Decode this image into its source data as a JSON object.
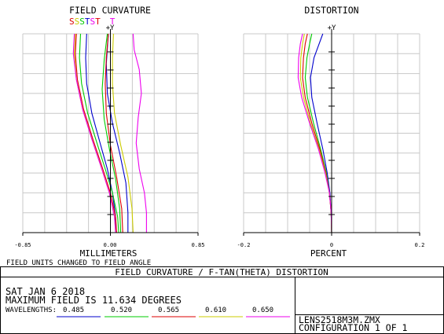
{
  "title_bar": "FIELD CURVATURE / F-TAN(THETA) DISTORTION",
  "info": {
    "date": "SAT JAN 6 2018",
    "max_field": "MAXIMUM FIELD IS 11.634 DEGREES",
    "wavelengths_label": "WAVELENGTHS:",
    "file": "LENS2518M3M.ZMX",
    "configuration": "CONFIGURATION 1 OF 1"
  },
  "colors": {
    "w1": "#0000cc",
    "w2": "#00cc00",
    "w3": "#dd0000",
    "w4": "#cccc00",
    "w5": "#ee00ee"
  },
  "chart_data": [
    {
      "type": "line",
      "title": "FIELD CURVATURE",
      "xlabel": "MILLIMETERS",
      "ylabel": "+Y",
      "note": "FIELD UNITS CHANGED TO FIELD ANGLE",
      "xlim": [
        -0.85,
        0.85
      ],
      "ylim": [
        0,
        1
      ],
      "x_ticks": [
        "-0.85",
        "0.00",
        "0.85"
      ],
      "grid": true,
      "st_labels": [
        {
          "text": "S",
          "color": "#dd0000"
        },
        {
          "text": "S",
          "color": "#cccc00"
        },
        {
          "text": "S",
          "color": "#00cc00"
        },
        {
          "text": "T",
          "color": "#0000cc"
        },
        {
          "text": "S",
          "color": "#ee00ee"
        },
        {
          "text": "T",
          "color": "#dd0000"
        },
        {
          "text": "T",
          "color": "#ee00ee"
        }
      ],
      "series": [
        {
          "wavelength": "0.485",
          "curve": "S",
          "color": "#0000cc",
          "points": [
            [
              0.05,
              0
            ],
            [
              0.05,
              0.08
            ],
            [
              0.02,
              0.2
            ],
            [
              -0.03,
              0.32
            ],
            [
              -0.1,
              0.45
            ],
            [
              -0.18,
              0.6
            ],
            [
              -0.23,
              0.75
            ],
            [
              -0.24,
              0.88
            ],
            [
              -0.23,
              1
            ]
          ]
        },
        {
          "wavelength": "0.485",
          "curve": "T",
          "color": "#0000cc",
          "points": [
            [
              0.17,
              0
            ],
            [
              0.17,
              0.1
            ],
            [
              0.15,
              0.25
            ],
            [
              0.09,
              0.4
            ],
            [
              0.02,
              0.55
            ],
            [
              -0.03,
              0.7
            ],
            [
              -0.04,
              0.85
            ],
            [
              -0.02,
              1
            ]
          ]
        },
        {
          "wavelength": "0.520",
          "curve": "S",
          "color": "#00cc00",
          "points": [
            [
              0.08,
              0
            ],
            [
              0.07,
              0.08
            ],
            [
              0.02,
              0.2
            ],
            [
              -0.05,
              0.32
            ],
            [
              -0.13,
              0.45
            ],
            [
              -0.22,
              0.6
            ],
            [
              -0.28,
              0.75
            ],
            [
              -0.3,
              0.88
            ],
            [
              -0.29,
              1
            ]
          ]
        },
        {
          "wavelength": "0.520",
          "curve": "T",
          "color": "#00cc00",
          "points": [
            [
              0.1,
              0
            ],
            [
              0.09,
              0.12
            ],
            [
              0.05,
              0.27
            ],
            [
              -0.01,
              0.42
            ],
            [
              -0.06,
              0.57
            ],
            [
              -0.08,
              0.72
            ],
            [
              -0.06,
              0.87
            ],
            [
              -0.03,
              1
            ]
          ]
        },
        {
          "wavelength": "0.565",
          "curve": "S",
          "color": "#dd0000",
          "points": [
            [
              0.06,
              0
            ],
            [
              0.05,
              0.08
            ],
            [
              0.0,
              0.2
            ],
            [
              -0.08,
              0.33
            ],
            [
              -0.17,
              0.47
            ],
            [
              -0.26,
              0.62
            ],
            [
              -0.32,
              0.77
            ],
            [
              -0.34,
              0.9
            ],
            [
              -0.33,
              1
            ]
          ]
        },
        {
          "wavelength": "0.565",
          "curve": "T",
          "color": "#dd0000",
          "points": [
            [
              0.12,
              0
            ],
            [
              0.11,
              0.12
            ],
            [
              0.06,
              0.28
            ],
            [
              0.0,
              0.44
            ],
            [
              -0.04,
              0.6
            ],
            [
              -0.05,
              0.75
            ],
            [
              -0.04,
              0.88
            ],
            [
              -0.02,
              1
            ]
          ]
        },
        {
          "wavelength": "0.610",
          "curve": "S",
          "color": "#cccc00",
          "points": [
            [
              0.05,
              0
            ],
            [
              0.04,
              0.08
            ],
            [
              -0.01,
              0.2
            ],
            [
              -0.09,
              0.33
            ],
            [
              -0.18,
              0.47
            ],
            [
              -0.27,
              0.62
            ],
            [
              -0.33,
              0.77
            ],
            [
              -0.35,
              0.9
            ],
            [
              -0.34,
              1
            ]
          ]
        },
        {
          "wavelength": "0.610",
          "curve": "T",
          "color": "#cccc00",
          "points": [
            [
              0.22,
              0
            ],
            [
              0.21,
              0.12
            ],
            [
              0.17,
              0.28
            ],
            [
              0.1,
              0.44
            ],
            [
              0.04,
              0.6
            ],
            [
              0.02,
              0.75
            ],
            [
              0.02,
              0.88
            ],
            [
              0.03,
              1
            ]
          ]
        },
        {
          "wavelength": "0.650",
          "curve": "S",
          "color": "#ee00ee",
          "points": [
            [
              0.05,
              0
            ],
            [
              0.04,
              0.08
            ],
            [
              -0.01,
              0.2
            ],
            [
              -0.09,
              0.33
            ],
            [
              -0.18,
              0.47
            ],
            [
              -0.27,
              0.62
            ],
            [
              -0.33,
              0.77
            ],
            [
              -0.36,
              0.9
            ],
            [
              -0.35,
              1
            ]
          ]
        },
        {
          "wavelength": "0.650",
          "curve": "T",
          "color": "#ee00ee",
          "points": [
            [
              0.35,
              0
            ],
            [
              0.35,
              0.1
            ],
            [
              0.33,
              0.2
            ],
            [
              0.28,
              0.32
            ],
            [
              0.25,
              0.45
            ],
            [
              0.27,
              0.58
            ],
            [
              0.3,
              0.7
            ],
            [
              0.28,
              0.82
            ],
            [
              0.23,
              0.92
            ],
            [
              0.22,
              1
            ]
          ]
        }
      ]
    },
    {
      "type": "line",
      "title": "DISTORTION",
      "xlabel": "PERCENT",
      "ylabel": "+Y",
      "xlim": [
        -0.2,
        0.2
      ],
      "ylim": [
        0,
        1
      ],
      "x_ticks": [
        "-0.2",
        "0",
        "0.2"
      ],
      "grid": true,
      "series": [
        {
          "wavelength": "0.485",
          "color": "#0000cc",
          "points": [
            [
              0,
              0
            ],
            [
              -0.001,
              0.1
            ],
            [
              -0.004,
              0.2
            ],
            [
              -0.01,
              0.3
            ],
            [
              -0.02,
              0.42
            ],
            [
              -0.033,
              0.55
            ],
            [
              -0.045,
              0.68
            ],
            [
              -0.048,
              0.78
            ],
            [
              -0.04,
              0.88
            ],
            [
              -0.03,
              0.94
            ],
            [
              -0.02,
              1
            ]
          ]
        },
        {
          "wavelength": "0.520",
          "color": "#00cc00",
          "points": [
            [
              0,
              0
            ],
            [
              -0.001,
              0.1
            ],
            [
              -0.005,
              0.2
            ],
            [
              -0.012,
              0.3
            ],
            [
              -0.025,
              0.42
            ],
            [
              -0.041,
              0.55
            ],
            [
              -0.055,
              0.68
            ],
            [
              -0.06,
              0.78
            ],
            [
              -0.056,
              0.88
            ],
            [
              -0.05,
              0.95
            ],
            [
              -0.045,
              1
            ]
          ]
        },
        {
          "wavelength": "0.565",
          "color": "#dd0000",
          "points": [
            [
              0,
              0
            ],
            [
              -0.001,
              0.1
            ],
            [
              -0.005,
              0.2
            ],
            [
              -0.013,
              0.3
            ],
            [
              -0.027,
              0.42
            ],
            [
              -0.045,
              0.55
            ],
            [
              -0.06,
              0.68
            ],
            [
              -0.066,
              0.78
            ],
            [
              -0.064,
              0.88
            ],
            [
              -0.06,
              0.95
            ],
            [
              -0.055,
              1
            ]
          ]
        },
        {
          "wavelength": "0.610",
          "color": "#cccc00",
          "points": [
            [
              0,
              0
            ],
            [
              -0.001,
              0.1
            ],
            [
              -0.005,
              0.2
            ],
            [
              -0.014,
              0.3
            ],
            [
              -0.029,
              0.42
            ],
            [
              -0.048,
              0.55
            ],
            [
              -0.064,
              0.68
            ],
            [
              -0.071,
              0.78
            ],
            [
              -0.07,
              0.88
            ],
            [
              -0.066,
              0.95
            ],
            [
              -0.062,
              1
            ]
          ]
        },
        {
          "wavelength": "0.650",
          "color": "#ee00ee",
          "points": [
            [
              0,
              0
            ],
            [
              -0.001,
              0.1
            ],
            [
              -0.005,
              0.2
            ],
            [
              -0.015,
              0.3
            ],
            [
              -0.03,
              0.42
            ],
            [
              -0.05,
              0.55
            ],
            [
              -0.068,
              0.68
            ],
            [
              -0.076,
              0.78
            ],
            [
              -0.075,
              0.88
            ],
            [
              -0.071,
              0.95
            ],
            [
              -0.066,
              1
            ]
          ]
        }
      ]
    }
  ]
}
